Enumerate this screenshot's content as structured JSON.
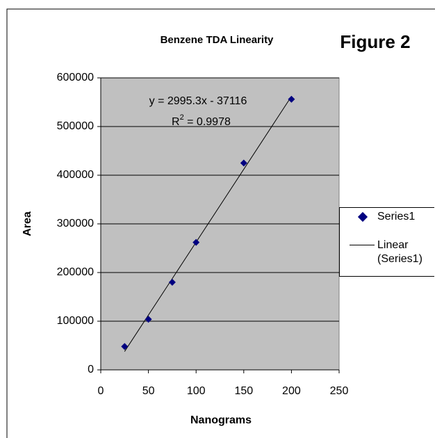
{
  "chart_data": {
    "type": "scatter",
    "title": "Benzene TDA Linearity",
    "figure_label": "Figure 2",
    "x_label": "Nanograms",
    "y_label": "Area",
    "series": [
      {
        "name": "Series1",
        "color": "#000080",
        "x": [
          25,
          50,
          75,
          100,
          150,
          200
        ],
        "values": [
          48000,
          104000,
          180000,
          262000,
          425000,
          556000
        ]
      }
    ],
    "trendline": {
      "name": "Linear (Series1)",
      "slope": 2995.3,
      "intercept": -37116,
      "color": "#000000",
      "equation": "y = 2995.3x - 37116",
      "r2_base": "R",
      "r2_sup": "2",
      "r2_rest": " = 0.9978"
    },
    "xlim": [
      0,
      250
    ],
    "xticks": [
      0,
      50,
      100,
      150,
      200,
      250
    ],
    "ylim": [
      0,
      600000
    ],
    "yticks": [
      0,
      100000,
      200000,
      300000,
      400000,
      500000,
      600000
    ],
    "grid": true,
    "plot_background": "#c0c0c0",
    "legend": "right"
  }
}
